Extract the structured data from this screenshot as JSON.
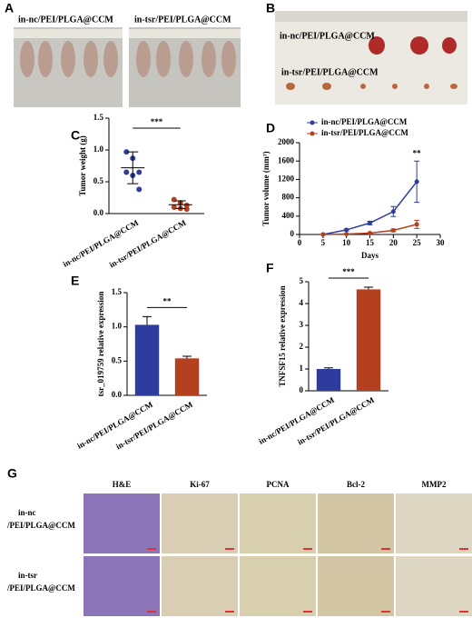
{
  "panels": {
    "a": "A",
    "b": "B",
    "c": "C",
    "d": "D",
    "e": "E",
    "f": "F",
    "g": "G"
  },
  "photo_a": {
    "left": "in-nc/PEI/PLGA@CCM",
    "right": "in-tsr/PEI/PLGA@CCM"
  },
  "photo_b": {
    "top": "in-nc/PEI/PLGA@CCM",
    "bottom": "in-tsr/PEI/PLGA@CCM"
  },
  "histology": {
    "columns": [
      "H&E",
      "Ki-67",
      "PCNA",
      "Bcl-2",
      "MMP2"
    ],
    "rows": [
      [
        "in-nc",
        "/PEI/PLGA@CCM"
      ],
      [
        "in-tsr",
        "/PEI/PLGA@CCM"
      ]
    ]
  },
  "chart_data": [
    {
      "type": "dot",
      "ylabel": "Tumor weight (g)",
      "categories": [
        "in-nc/PEI/PLGA@CCM",
        "in-tsr/PEI/PLGA@CCM"
      ],
      "colors": [
        "#2e3ca0",
        "#b5401f"
      ],
      "points": [
        [
          0.97,
          0.87,
          0.65,
          0.65,
          0.6,
          0.38
        ],
        [
          0.22,
          0.17,
          0.13,
          0.1,
          0.08,
          0.07
        ]
      ],
      "means": [
        0.72,
        0.14
      ],
      "sd": [
        0.25,
        0.06
      ],
      "ylim": [
        0,
        1.5
      ],
      "yticks": [
        {
          "value": 0,
          "label": "0.0"
        },
        0.5,
        {
          "value": 1,
          "label": "1.0"
        },
        1.5
      ],
      "annotation": "***"
    },
    {
      "type": "line",
      "xlabel": "Days",
      "ylabel": "Tumor volume (mm³)",
      "x": [
        5,
        10,
        15,
        20,
        25
      ],
      "series": [
        {
          "name": "in-nc/PEI/PLGA@CCM",
          "color": "#2e3ca0",
          "values": [
            0,
            100,
            250,
            500,
            1150
          ],
          "errors": [
            0,
            20,
            40,
            110,
            450
          ]
        },
        {
          "name": "in-tsr/PEI/PLGA@CCM",
          "color": "#b5401f",
          "values": [
            0,
            10,
            30,
            90,
            220
          ],
          "errors": [
            0,
            5,
            10,
            30,
            90
          ]
        }
      ],
      "xlim": [
        0,
        30
      ],
      "xticks": [
        0,
        5,
        10,
        15,
        20,
        25,
        30
      ],
      "ylim": [
        0,
        2000
      ],
      "yticks": [
        0,
        400,
        800,
        1200,
        1600,
        2000
      ],
      "legend": "upper left",
      "annotation": "**"
    },
    {
      "type": "bar",
      "ylabel": "tsr_019759 relative expression",
      "categories": [
        "in-nc/PEI/PLGA@CCM",
        "in-tsr/PEI/PLGA@CCM"
      ],
      "colors": [
        "#2e3ca0",
        "#b5401f"
      ],
      "values": [
        1.03,
        0.54
      ],
      "errors": [
        0.12,
        0.03
      ],
      "ylim": [
        0,
        1.5
      ],
      "yticks": [
        {
          "value": 0,
          "label": "0.0"
        },
        0.5,
        {
          "value": 1,
          "label": "1.0"
        },
        1.5
      ],
      "annotation": "**"
    },
    {
      "type": "bar",
      "ylabel": "TNFSF15 relative expression",
      "categories": [
        "in-nc/PEI/PLGA@CCM",
        "in-tsr/PEI/PLGA@CCM"
      ],
      "colors": [
        "#2e3ca0",
        "#b5401f"
      ],
      "values": [
        1.0,
        4.65
      ],
      "errors": [
        0.05,
        0.1
      ],
      "ylim": [
        0,
        5
      ],
      "yticks": [
        0,
        1,
        2,
        3,
        4,
        5
      ],
      "annotation": "***"
    }
  ]
}
